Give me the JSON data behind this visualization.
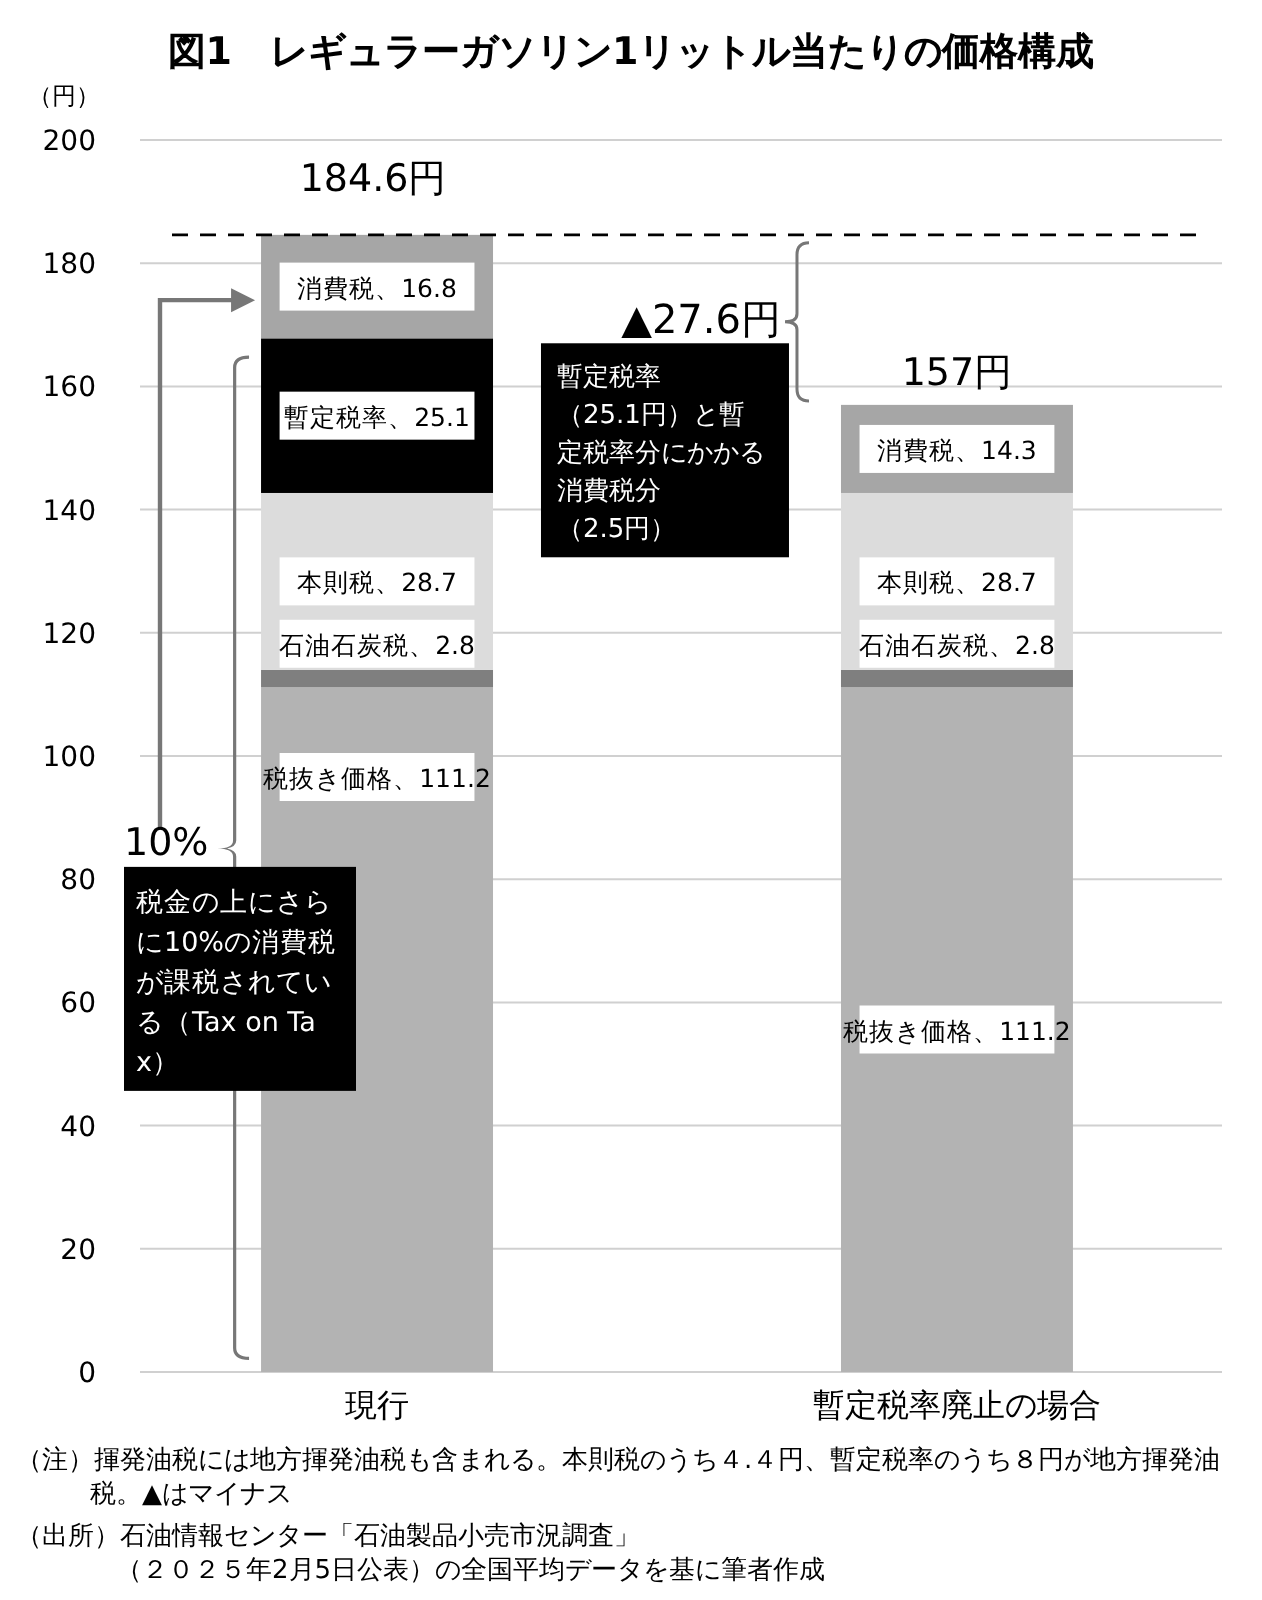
{
  "chart_data": {
    "type": "bar",
    "stacked": true,
    "title": "図1　レギュラーガソリン1リットル当たりの価格構成",
    "ylabel": "（円）",
    "categories": [
      "現行",
      "暫定税率廃止の場合"
    ],
    "series": [
      {
        "color": "#b3b3b3",
        "values": [
          111.2,
          111.2
        ],
        "value_labels": [
          "税抜き価格、111.2",
          "税抜き価格、111.2"
        ]
      },
      {
        "color": "#7f7f7f",
        "values": [
          2.8,
          2.8
        ],
        "value_labels": [
          "石油石炭税、2.8",
          "石油石炭税、2.8"
        ]
      },
      {
        "color": "#dcdcdc",
        "values": [
          28.7,
          28.7
        ],
        "value_labels": [
          "本則税、28.7",
          "本則税、28.7"
        ]
      },
      {
        "color": "#000000",
        "values": [
          25.1,
          0
        ],
        "value_labels": [
          "暫定税率、25.1",
          null
        ]
      },
      {
        "color": "#a6a6a6",
        "values": [
          16.8,
          14.3
        ],
        "value_labels": [
          "消費税、16.8",
          "消費税、14.3"
        ]
      }
    ],
    "totals": [
      "184.6円",
      "157円"
    ],
    "ylim": [
      0,
      200
    ],
    "yticks": [
      0,
      20,
      40,
      60,
      80,
      100,
      120,
      140,
      160,
      180,
      200
    ],
    "grid": "y",
    "ref_lines": [
      {
        "axis": "y",
        "value": 184.6,
        "line_style": "dashed",
        "color": "#000000"
      }
    ],
    "annotations": [
      "▲27.6円",
      "暫定税率（25.1円）と暫定税率分にかかる消費税分（2.5円）",
      "10%",
      "税金の上にさらに10%の消費税が課税されている（Tax on Tax）",
      "（注）揮発油税には地方揮発油税も含まれる。本則税のうち４.４円、暫定税率のうち８円が地方揮発油税。▲はマイナス",
      "（出所）石油情報センター「石油製品小売市況調査」（２０２５年2月5日公表）の全国平均データを基に筆者作成"
    ]
  }
}
